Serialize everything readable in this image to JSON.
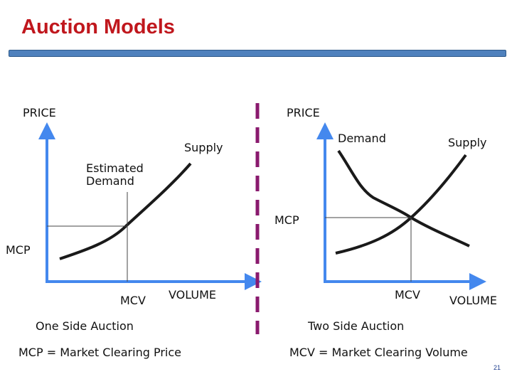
{
  "slide": {
    "title": "Auction Models",
    "page_number": "21",
    "accent_color": "#4f81bd",
    "title_color": "#c0171d",
    "axis_color": "#4488ee"
  },
  "left_panel": {
    "y_axis_label": "PRICE",
    "supply_label": "Supply",
    "demand_label": "Estimated\nDemand",
    "mcp_label": "MCP",
    "mcv_label": "MCV",
    "x_axis_label": "VOLUME",
    "caption": "One Side Auction"
  },
  "right_panel": {
    "y_axis_label": "PRICE",
    "demand_label": "Demand",
    "supply_label": "Supply",
    "mcp_label": "MCP",
    "mcv_label": "MCV",
    "x_axis_label": "VOLUME",
    "caption": "Two Side Auction"
  },
  "footer": {
    "mcp_definition": "MCP = Market Clearing Price",
    "mcv_definition": "MCV = Market Clearing Volume"
  }
}
